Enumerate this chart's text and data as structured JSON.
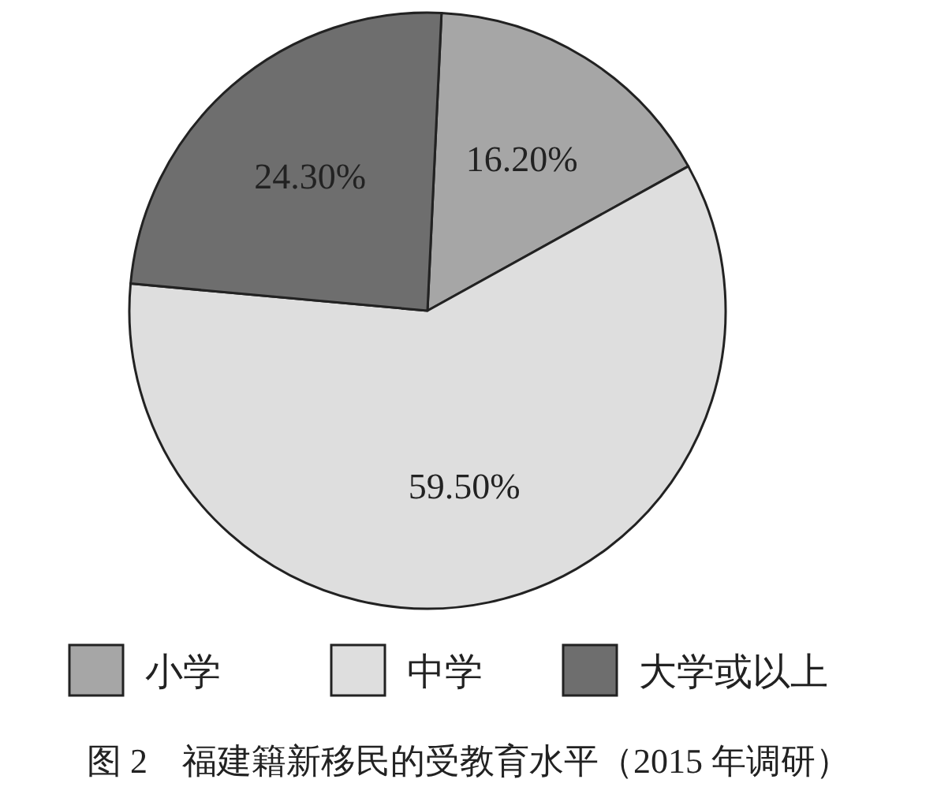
{
  "chart_data": {
    "type": "pie",
    "title": "图 2　福建籍新移民的受教育水平（2015 年调研）",
    "categories": [
      "小学",
      "中学",
      "大学或以上"
    ],
    "values": [
      16.2,
      59.5,
      24.3
    ],
    "value_labels": [
      "16.20%",
      "59.50%",
      "24.30%"
    ],
    "colors": [
      "#a6a6a6",
      "#dedede",
      "#6e6e6e"
    ],
    "legend": "bottom"
  }
}
